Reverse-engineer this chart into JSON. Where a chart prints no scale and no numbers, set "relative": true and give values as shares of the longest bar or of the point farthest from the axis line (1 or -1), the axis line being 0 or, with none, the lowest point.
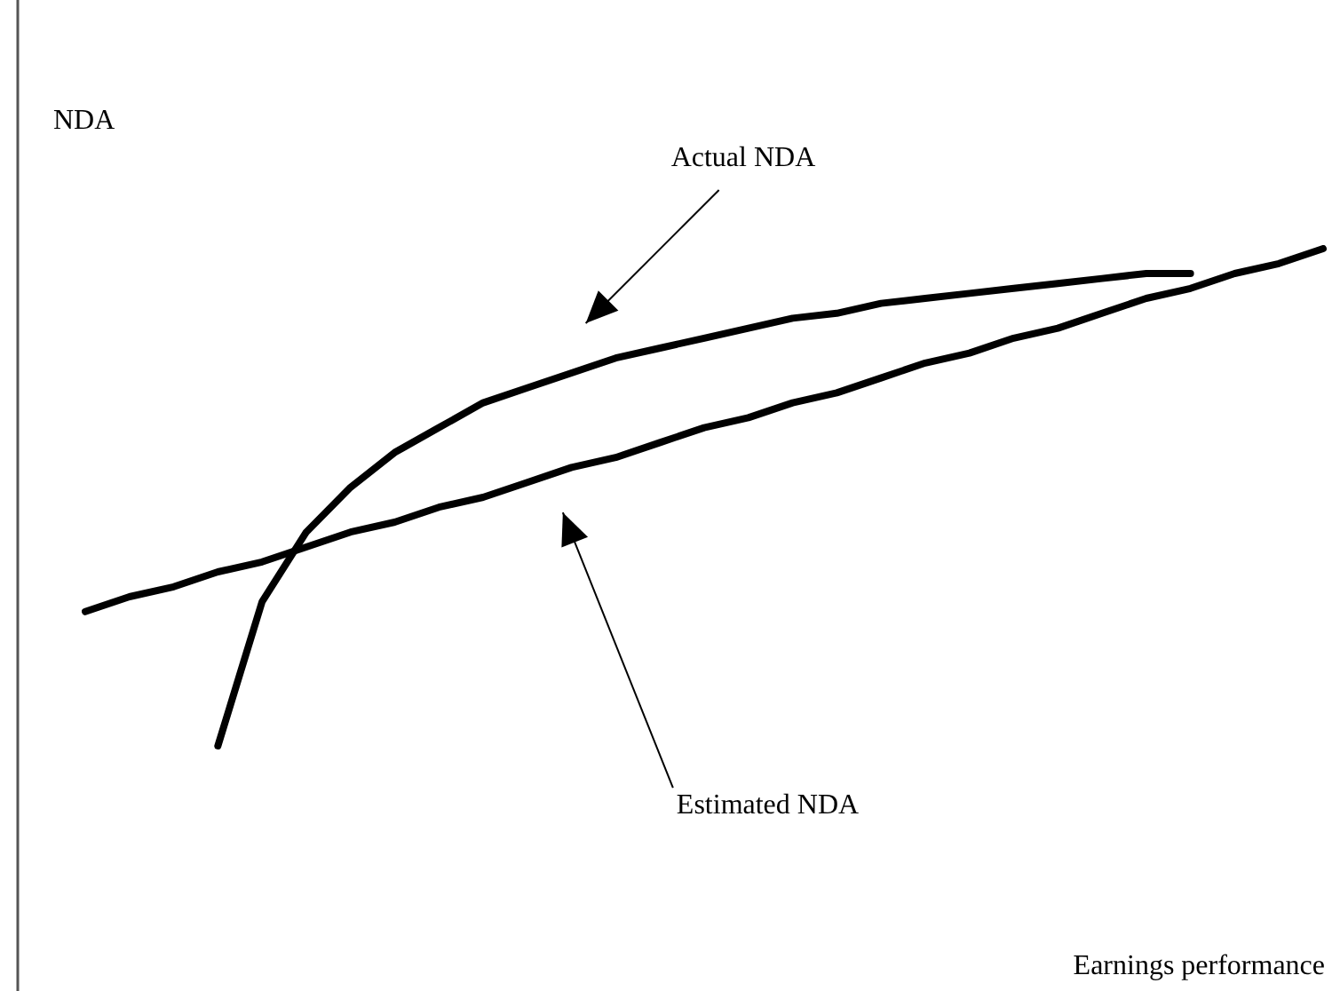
{
  "chart_data": {
    "type": "line",
    "relative": true,
    "annotations": [
      "Earnings performance"
    ],
    "ylabel": "NDA",
    "categories": [
      null,
      null,
      null,
      null,
      null,
      null,
      null,
      null,
      null,
      null,
      null,
      null,
      null,
      null,
      null,
      null,
      null,
      null,
      null,
      null,
      null,
      null,
      null,
      null,
      null,
      null,
      null,
      null,
      null
    ],
    "series": [
      {
        "name": "Actual NDA",
        "color": "#000000",
        "values": [
          null,
          null,
          null,
          0,
          0.29,
          0.43,
          0.52,
          0.59,
          0.64,
          0.69,
          0.72,
          0.75,
          0.78,
          0.8,
          0.82,
          0.84,
          0.86,
          0.87,
          0.89,
          0.9,
          0.91,
          0.92,
          0.93,
          0.94,
          0.95,
          0.95,
          null,
          null,
          null
        ]
      },
      {
        "name": "Estimated NDA",
        "color": "#000000",
        "values": [
          0.27,
          0.3,
          0.32,
          0.35,
          0.37,
          0.4,
          0.43,
          0.45,
          0.48,
          0.5,
          0.53,
          0.56,
          0.58,
          0.61,
          0.64,
          0.66,
          0.69,
          0.71,
          0.74,
          0.77,
          0.79,
          0.82,
          0.84,
          0.87,
          0.9,
          0.92,
          0.95,
          0.97,
          1.0
        ]
      }
    ]
  }
}
